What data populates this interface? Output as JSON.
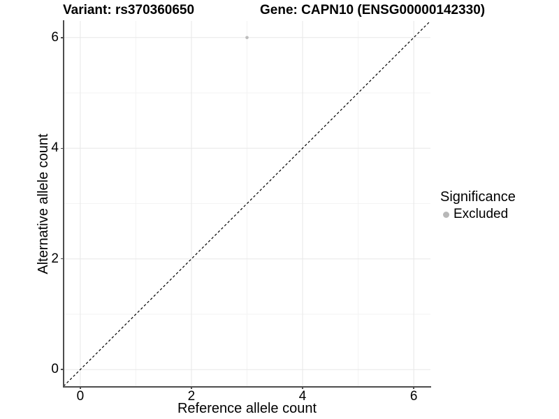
{
  "title_left": "Variant: rs370360650",
  "title_right": "Gene: CAPN10 (ENSG00000142330)",
  "axes": {
    "x_label": "Reference allele count",
    "y_label": "Alternative allele count",
    "x_tick_labels": [
      "0",
      "2",
      "4",
      "6"
    ],
    "y_tick_labels": [
      "0",
      "2",
      "4",
      "6"
    ]
  },
  "legend": {
    "title": "Significance",
    "items": [
      {
        "label": "Excluded",
        "color": "#b8b8b8"
      }
    ]
  },
  "colors": {
    "background": "#ffffff",
    "text": "#000000",
    "axis_line": "#4d4d4d",
    "tick_mark": "#4d4d4d",
    "grid_major": "#e7e7e7",
    "grid_minor": "#f3f3f3",
    "point": "#bdbdbd",
    "reference_line": "#000000"
  },
  "chart_data": {
    "type": "scatter",
    "title": "Variant: rs370360650 | Gene: CAPN10 (ENSG00000142330)",
    "xlabel": "Reference allele count",
    "ylabel": "Alternative allele count",
    "xlim": [
      -0.3,
      6.3
    ],
    "ylim": [
      -0.3,
      6.3
    ],
    "x_ticks": [
      0,
      2,
      4,
      6
    ],
    "y_ticks": [
      0,
      2,
      4,
      6
    ],
    "minor_ticks": [
      1,
      3,
      5
    ],
    "grid": true,
    "legend_position": "right",
    "legend_title": "Significance",
    "series": [
      {
        "name": "Excluded",
        "color": "#bdbdbd",
        "points": [
          {
            "x": 3,
            "y": 6
          }
        ]
      }
    ],
    "reference_line": {
      "type": "identity",
      "equation": "y = x",
      "style": "dashed",
      "color": "#000000"
    }
  }
}
